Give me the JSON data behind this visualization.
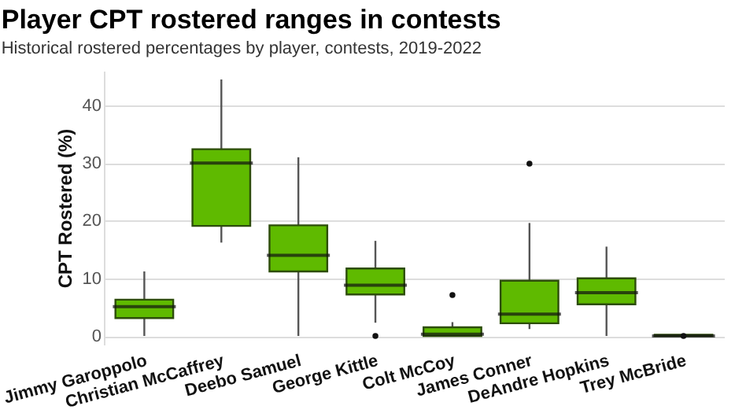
{
  "chart_data": {
    "type": "box",
    "title": "Player CPT rostered ranges in contests",
    "subtitle": "Historical rostered percentages by player, contests, 2019-2022",
    "ylabel": "CPT Rostered (%)",
    "categories": [
      "Jimmy Garoppolo",
      "Christian McCaffrey",
      "Deebo Samuel",
      "George Kittle",
      "Colt McCoy",
      "James Conner",
      "DeAndre Hopkins",
      "Trey McBride"
    ],
    "boxes": [
      {
        "low": 0,
        "q1": 3.1,
        "median": 5.1,
        "q3": 6.3,
        "high": 11.2
      },
      {
        "low": 16.2,
        "q1": 19.1,
        "median": 30,
        "q3": 32.4,
        "high": 44.5
      },
      {
        "low": 0,
        "q1": 11.2,
        "median": 14,
        "q3": 19.2,
        "high": 31
      },
      {
        "low": 2.3,
        "q1": 7.2,
        "median": 8.8,
        "q3": 11.7,
        "high": 16.5,
        "outliers": [
          0
        ]
      },
      {
        "low": 0,
        "q1": 0,
        "median": 0.3,
        "q3": 1.5,
        "high": 2.4,
        "outliers": [
          7.1
        ]
      },
      {
        "low": 1.2,
        "q1": 2.2,
        "median": 3.8,
        "q3": 9.6,
        "high": 19.6,
        "outliers": [
          29.9
        ]
      },
      {
        "low": 0,
        "q1": 5.5,
        "median": 7.5,
        "q3": 10,
        "high": 15.5
      },
      {
        "low": 0,
        "q1": 0,
        "median": 0,
        "q3": 0.2,
        "high": 0.2,
        "outliers": [
          0
        ]
      }
    ],
    "color": "#5fba00",
    "ylim": [
      -1.5,
      46
    ],
    "yticks": [
      0,
      10,
      20,
      30,
      40
    ],
    "grid": "y"
  }
}
